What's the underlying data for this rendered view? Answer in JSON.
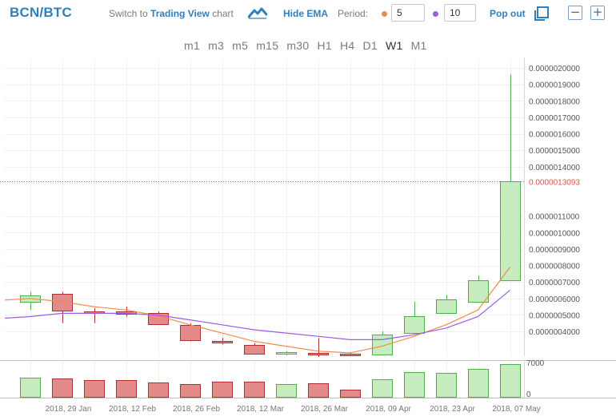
{
  "header": {
    "pair": "BCN/BTC",
    "switch_prefix": "Switch to",
    "switch_link": "Trading View",
    "switch_suffix": "chart",
    "hide_ema": "Hide EMA",
    "period_label": "Period:",
    "period_fast": "5",
    "period_slow": "10",
    "popout": "Pop out",
    "minimize_glyph": "−",
    "maximize_glyph": "+"
  },
  "timeframes": [
    "m1",
    "m3",
    "m5",
    "m15",
    "m30",
    "H1",
    "H4",
    "D1",
    "W1",
    "M1"
  ],
  "active_timeframe": "W1",
  "colors": {
    "ema_fast": "#f08a50",
    "ema_slow": "#9b5de5",
    "up_fill": "#c6ecc0",
    "up_stroke": "#4cae4c",
    "down_fill": "#e58a8a",
    "down_stroke": "#b03030",
    "accent": "#2d7fc0"
  },
  "chart_data": {
    "type": "candlestick",
    "pair": "BCN/BTC",
    "timeframe": "W1",
    "price_ticks": [
      "0.0000004000",
      "0.0000005000",
      "0.0000006000",
      "0.0000007000",
      "0.0000008000",
      "0.0000009000",
      "0.0000010000",
      "0.0000011000",
      "0.0000013093",
      "0.0000014000",
      "0.0000015000",
      "0.0000016000",
      "0.0000017000",
      "0.0000018000",
      "0.0000019000",
      "0.0000020000"
    ],
    "price_tick_values": [
      4e-07,
      5e-07,
      6e-07,
      7e-07,
      8e-07,
      9e-07,
      1e-06,
      1.1e-06,
      1.3093e-06,
      1.4e-06,
      1.5e-06,
      1.6e-06,
      1.7e-06,
      1.8e-06,
      1.9e-06,
      2e-06
    ],
    "last_price": "0.0000013093",
    "last_price_value": 1.3093e-06,
    "ylim": [
      2.5e-07,
      2e-06
    ],
    "x_tick_labels": [
      "2018, 29 Jan",
      "2018, 12 Feb",
      "2018, 26 Feb",
      "2018, 12 Mar",
      "2018, 26 Mar",
      "2018, 09 Apr",
      "2018, 23 Apr",
      "2018, 07 May"
    ],
    "x_tick_candle_index": [
      1,
      3,
      5,
      7,
      9,
      11,
      13,
      15
    ],
    "candles": [
      {
        "o": 5.8e-07,
        "h": 6.4e-07,
        "l": 5.3e-07,
        "c": 6.2e-07
      },
      {
        "o": 6.3e-07,
        "h": 6.4e-07,
        "l": 4.5e-07,
        "c": 5.3e-07
      },
      {
        "o": 5.2e-07,
        "h": 5.4e-07,
        "l": 4.5e-07,
        "c": 5.15e-07
      },
      {
        "o": 5.2e-07,
        "h": 5.5e-07,
        "l": 4.9e-07,
        "c": 5.05e-07
      },
      {
        "o": 5.1e-07,
        "h": 5.2e-07,
        "l": 4.4e-07,
        "c": 4.4e-07
      },
      {
        "o": 4.4e-07,
        "h": 4.5e-07,
        "l": 3.4e-07,
        "c": 3.5e-07
      },
      {
        "o": 3.4e-07,
        "h": 3.6e-07,
        "l": 3.2e-07,
        "c": 3.3e-07
      },
      {
        "o": 3.2e-07,
        "h": 3.3e-07,
        "l": 2.6e-07,
        "c": 2.65e-07
      },
      {
        "o": 2.65e-07,
        "h": 2.8e-07,
        "l": 2.55e-07,
        "c": 2.7e-07
      },
      {
        "o": 2.65e-07,
        "h": 3.6e-07,
        "l": 2.45e-07,
        "c": 2.6e-07
      },
      {
        "o": 2.62e-07,
        "h": 2.7e-07,
        "l": 2.5e-07,
        "c": 2.58e-07
      },
      {
        "o": 2.6e-07,
        "h": 4e-07,
        "l": 2.6e-07,
        "c": 3.8e-07
      },
      {
        "o": 3.9e-07,
        "h": 5.8e-07,
        "l": 3.9e-07,
        "c": 4.925e-07
      },
      {
        "o": 5.1e-07,
        "h": 6.2e-07,
        "l": 5.1e-07,
        "c": 5.93e-07
      },
      {
        "o": 5.8e-07,
        "h": 7.4e-07,
        "l": 5.8e-07,
        "c": 7.1e-07
      },
      {
        "o": 7.1e-07,
        "h": 1.96e-06,
        "l": 7.1e-07,
        "c": 1.3093e-06
      }
    ],
    "ema_fast": [
      6e-07,
      5.8e-07,
      5.5e-07,
      5.3e-07,
      4.96e-07,
      4.4e-07,
      3.9e-07,
      3.4e-07,
      3.1e-07,
      2.8e-07,
      2.7e-07,
      3.1e-07,
      3.7e-07,
      4.4e-07,
      5.3e-07,
      7.9e-07
    ],
    "ema_slow": [
      4.9e-07,
      5.1e-07,
      5.1e-07,
      5.1e-07,
      4.99e-07,
      4.7e-07,
      4.4e-07,
      4.1e-07,
      3.9e-07,
      3.7e-07,
      3.5e-07,
      3.5e-07,
      3.8e-07,
      4.2e-07,
      4.9e-07,
      6.5e-07
    ],
    "volume": [
      3950,
      3800,
      3350,
      3350,
      2950,
      2650,
      3050,
      3050,
      2650,
      2750,
      1400,
      3650,
      5100,
      4850,
      5650,
      6700
    ],
    "volume_ticks": [
      "7000",
      "0"
    ],
    "volume_tick_values": [
      7000,
      0
    ],
    "volume_ylim": [
      0,
      8000
    ]
  }
}
